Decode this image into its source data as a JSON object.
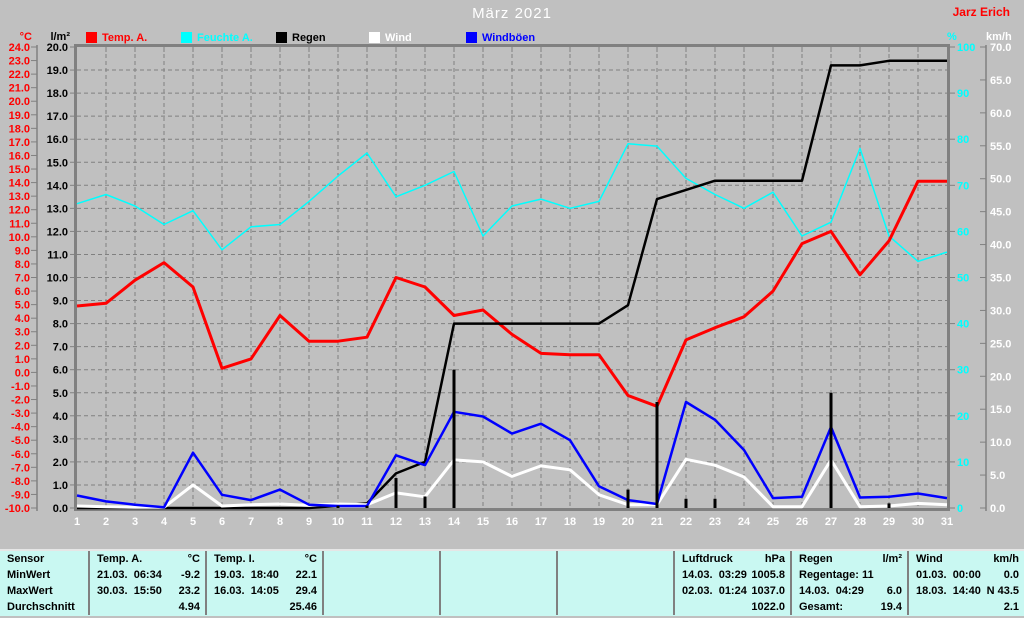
{
  "header": {
    "title": "März 2021",
    "watermark": "Jarz Erich"
  },
  "colors": {
    "window_background": "#c0c0c0",
    "plot_background": "#c0c0c0",
    "grid": "#808080",
    "plot_border": "#808080",
    "title_text": "#ffffff",
    "watermark_text": "#ff0000",
    "day_labels": "#ffffff",
    "table_background": "#c9f8f2",
    "table_divider": "#808080",
    "table_text": "#000000"
  },
  "chart_data": {
    "type": "line",
    "title": "März 2021",
    "x": [
      1,
      2,
      3,
      4,
      5,
      6,
      7,
      8,
      9,
      10,
      11,
      12,
      13,
      14,
      15,
      16,
      17,
      18,
      19,
      20,
      21,
      22,
      23,
      24,
      25,
      26,
      27,
      28,
      29,
      30,
      31
    ],
    "x_axis": {
      "label_min": 1,
      "label_max": 31,
      "step": 1
    },
    "grid": "dashed, vertical per day, horizontal per 1 l/m² unit",
    "legend_position": "top",
    "axes": {
      "temp": {
        "unit": "°C",
        "min": -10,
        "max": 24,
        "tick": 1,
        "decimals": 1,
        "color": "#ff0000",
        "side": "left-outer"
      },
      "rain": {
        "unit": "l/m²",
        "min": 0,
        "max": 20,
        "tick": 1,
        "decimals": 1,
        "color": "#000000",
        "side": "left-inner"
      },
      "humidity": {
        "unit": "%",
        "min": 0,
        "max": 100,
        "tick": 10,
        "decimals": 0,
        "color": "#00ffff",
        "side": "right-inner"
      },
      "wind": {
        "unit": "km/h",
        "min": 0,
        "max": 70,
        "tick": 5,
        "decimals": 1,
        "color": "#ffffff",
        "side": "right-outer"
      }
    },
    "series": [
      {
        "name": "Temp. A.",
        "axis": "temp",
        "unit": "°C",
        "color": "#ff0000",
        "values": [
          4.9,
          5.1,
          6.8,
          8.1,
          6.3,
          0.3,
          1.0,
          4.2,
          2.3,
          2.3,
          2.6,
          7.0,
          6.3,
          4.2,
          4.6,
          2.8,
          1.4,
          1.3,
          1.3,
          -1.7,
          -2.5,
          2.4,
          3.3,
          4.1,
          6.0,
          9.5,
          10.4,
          7.2,
          9.7,
          14.1,
          14.1
        ]
      },
      {
        "name": "Feuchte A.",
        "axis": "humidity",
        "unit": "%",
        "color": "#00ffff",
        "values": [
          66,
          68,
          65.5,
          61.5,
          64.5,
          56,
          61,
          61.5,
          66.5,
          72,
          77,
          67.5,
          70,
          73,
          59,
          65.5,
          67,
          65,
          66.5,
          79,
          78.5,
          71.5,
          68,
          65,
          68.5,
          59,
          62,
          78,
          59,
          53.5,
          55.5
        ]
      },
      {
        "name": "Regen",
        "axis": "rain",
        "unit": "l/m²",
        "color": "#000000",
        "values": [
          0,
          0,
          0,
          0,
          0,
          0,
          0,
          0,
          0,
          0.1,
          0.2,
          1.5,
          2.0,
          8.0,
          8.0,
          8.0,
          8.0,
          8.0,
          8.0,
          8.8,
          13.4,
          13.8,
          14.2,
          14.2,
          14.2,
          14.2,
          19.2,
          19.2,
          19.4,
          19.4,
          19.4
        ]
      },
      {
        "name": "Wind",
        "axis": "wind",
        "unit": "km/h",
        "color": "#ffffff",
        "values": [
          0.3,
          0.2,
          0.1,
          0.1,
          3.5,
          0.3,
          0.5,
          0.6,
          0.4,
          0.6,
          0.5,
          2.3,
          1.7,
          7.3,
          7.0,
          4.8,
          6.4,
          5.8,
          2.0,
          0.5,
          0.5,
          7.4,
          6.5,
          4.7,
          0.2,
          0.2,
          7.3,
          0.2,
          0.3,
          0.7,
          0.5
        ]
      },
      {
        "name": "Windböen",
        "axis": "wind",
        "unit": "km/h",
        "color": "#0000ff",
        "values": [
          1.9,
          1.0,
          0.5,
          0.1,
          8.4,
          2.0,
          1.2,
          2.8,
          0.5,
          0.3,
          0.3,
          8.0,
          6.5,
          14.6,
          13.9,
          11.3,
          12.8,
          10.3,
          3.3,
          1.2,
          0.6,
          16.1,
          13.4,
          8.8,
          1.5,
          1.7,
          12.3,
          1.6,
          1.7,
          2.2,
          1.5
        ]
      }
    ],
    "rain_bars": {
      "name": "Regen (Tageswerte)",
      "axis": "rain",
      "color": "#000000",
      "days": [
        10,
        11,
        12,
        13,
        14,
        20,
        21,
        22,
        23,
        27,
        29
      ],
      "values": [
        0.1,
        0.1,
        1.3,
        0.5,
        6.0,
        0.8,
        4.6,
        0.4,
        0.4,
        5.0,
        0.2
      ]
    }
  },
  "stats_table": {
    "row_labels": [
      "Sensor",
      "MinWert",
      "MaxWert",
      "Durchschnitt"
    ],
    "columns": [
      {
        "header": [
          "Temp. A.",
          "°C"
        ],
        "rows": [
          [
            "21.03.  06:34",
            "-9.2"
          ],
          [
            "30.03.  15:50",
            "23.2"
          ],
          [
            "",
            "4.94"
          ]
        ]
      },
      {
        "header": [
          "Temp. I.",
          "°C"
        ],
        "rows": [
          [
            "19.03.  18:40",
            "22.1"
          ],
          [
            "16.03.  14:05",
            "29.4"
          ],
          [
            "",
            "25.46"
          ]
        ]
      },
      {
        "header": [
          "",
          ""
        ],
        "rows": [
          [
            "",
            ""
          ],
          [
            "",
            ""
          ],
          [
            "",
            ""
          ]
        ]
      },
      {
        "header": [
          "",
          ""
        ],
        "rows": [
          [
            "",
            ""
          ],
          [
            "",
            ""
          ],
          [
            "",
            ""
          ]
        ]
      },
      {
        "header": [
          "",
          ""
        ],
        "rows": [
          [
            "",
            ""
          ],
          [
            "",
            ""
          ],
          [
            "",
            ""
          ]
        ]
      },
      {
        "header": [
          "Luftdruck",
          "hPa"
        ],
        "rows": [
          [
            "14.03.  03:29",
            "1005.8"
          ],
          [
            "02.03.  01:24",
            "1037.0"
          ],
          [
            "",
            "1022.0"
          ]
        ]
      },
      {
        "header": [
          "Regen",
          "l/m²"
        ],
        "rows": [
          [
            "Regentage: 11",
            ""
          ],
          [
            "14.03.  04:29",
            "6.0"
          ],
          [
            "Gesamt:",
            "19.4"
          ]
        ]
      },
      {
        "header": [
          "Wind",
          "km/h"
        ],
        "rows": [
          [
            "01.03.  00:00",
            "0.0"
          ],
          [
            "18.03.  14:40",
            "N 43.5"
          ],
          [
            "",
            "2.1"
          ]
        ]
      }
    ]
  }
}
